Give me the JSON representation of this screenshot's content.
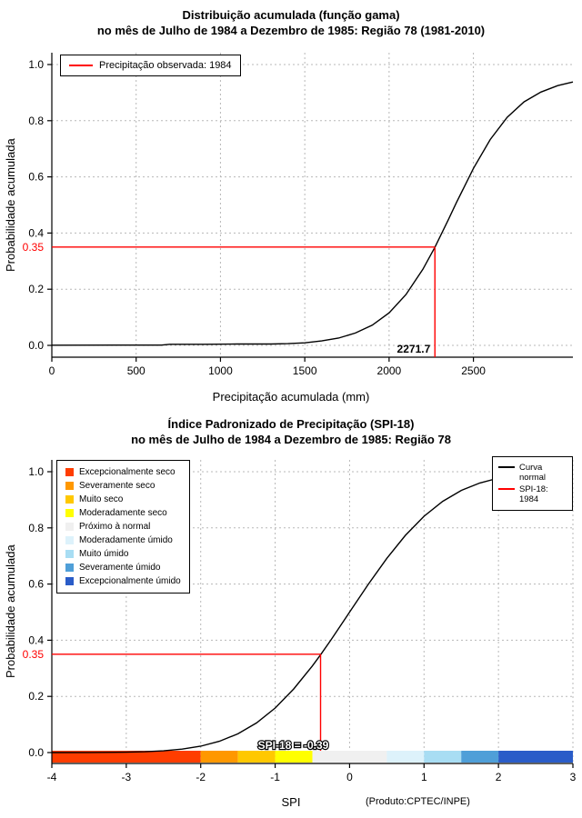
{
  "page": {
    "background": "#ffffff"
  },
  "style": {
    "grid_color": "#b8b8b8",
    "axis_color": "#000000",
    "curve_color": "#000000",
    "annotation_color": "#ff0000"
  },
  "chart_data": [
    {
      "type": "line",
      "title": "Distribuição acumulada (função gama)",
      "subtitle": "no mês de Julho de 1984 a Dezembro de 1985: Região 78 (1981-2010)",
      "xlabel": "Precipitação acumulada (mm)",
      "ylabel": "Probabilidade acumulada",
      "xlim": [
        0,
        3090
      ],
      "ylim": [
        0,
        1
      ],
      "xticks": [
        0,
        500,
        1000,
        1500,
        2000,
        2500
      ],
      "xtick_labels": [
        "0",
        "500",
        "1000",
        "1500",
        "2000",
        "2500"
      ],
      "yticks": [
        0,
        0.2,
        0.4,
        0.6,
        0.8,
        1
      ],
      "ytick_labels": [
        "0.0",
        "0.2",
        "0.4",
        "0.6",
        "0.8",
        "1.0"
      ],
      "grid": true,
      "legend_position": "top-left",
      "legend": [
        {
          "label": "Precipitação observada: 1984",
          "color": "#ff0000"
        }
      ],
      "series": [
        {
          "name": "Distribuição gama acumulada",
          "color": "#000000",
          "points": [
            [
              0,
              0.0005
            ],
            [
              400,
              0.001
            ],
            [
              650,
              0.001
            ],
            [
              700,
              0.004
            ],
            [
              900,
              0.004
            ],
            [
              1100,
              0.005
            ],
            [
              1300,
              0.005
            ],
            [
              1400,
              0.006
            ],
            [
              1500,
              0.009
            ],
            [
              1600,
              0.016
            ],
            [
              1700,
              0.026
            ],
            [
              1800,
              0.044
            ],
            [
              1900,
              0.072
            ],
            [
              2000,
              0.116
            ],
            [
              2100,
              0.181
            ],
            [
              2200,
              0.271
            ],
            [
              2271.7,
              0.35
            ],
            [
              2350,
              0.446
            ],
            [
              2400,
              0.509
            ],
            [
              2500,
              0.63
            ],
            [
              2600,
              0.733
            ],
            [
              2700,
              0.812
            ],
            [
              2800,
              0.867
            ],
            [
              2900,
              0.902
            ],
            [
              3000,
              0.925
            ],
            [
              3090,
              0.938
            ]
          ]
        }
      ],
      "annotation": {
        "x": 2271.7,
        "y": 0.35,
        "x_label": "2271.7",
        "y_label": "0.35",
        "color": "#ff0000"
      }
    },
    {
      "type": "line",
      "title": "Índice Padronizado de Precipitação (SPI-18)",
      "subtitle": "no mês de Julho de 1984 a Dezembro de 1985: Região 78",
      "xlabel": "SPI",
      "ylabel": "Probabilidade acumulada",
      "footnote": "(Produto:CPTEC/INPE)",
      "xlim": [
        -4,
        3
      ],
      "ylim": [
        0,
        1
      ],
      "xticks": [
        -4,
        -3,
        -2,
        -1,
        0,
        1,
        2,
        3
      ],
      "xtick_labels": [
        "-4",
        "-3",
        "-2",
        "-1",
        "0",
        "1",
        "2",
        "3"
      ],
      "yticks": [
        0,
        0.2,
        0.4,
        0.6,
        0.8,
        1
      ],
      "ytick_labels": [
        "0.0",
        "0.2",
        "0.4",
        "0.6",
        "0.8",
        "1.0"
      ],
      "grid": true,
      "legend_position": "top-right",
      "legend": [
        {
          "label": "Curva normal",
          "color": "#000000"
        },
        {
          "label": "SPI-18: 1984",
          "color": "#ff0000"
        }
      ],
      "classes": [
        {
          "label": "Excepcionalmente seco",
          "color": "#ff3d00",
          "from": -4,
          "to": -2
        },
        {
          "label": "Severamente seco",
          "color": "#ff9800",
          "from": -2,
          "to": -1.5
        },
        {
          "label": "Muito seco",
          "color": "#ffc800",
          "from": -1.5,
          "to": -1
        },
        {
          "label": "Moderadamente seco",
          "color": "#ffff00",
          "from": -1,
          "to": -0.5
        },
        {
          "label": "Próximo à normal",
          "color": "#f0f0f0",
          "from": -0.5,
          "to": 0.5
        },
        {
          "label": "Moderadamente úmido",
          "color": "#ddf2fb",
          "from": 0.5,
          "to": 1
        },
        {
          "label": "Muito úmido",
          "color": "#a8ddf3",
          "from": 1,
          "to": 1.5
        },
        {
          "label": "Severamente úmido",
          "color": "#4f9fd8",
          "from": 1.5,
          "to": 2
        },
        {
          "label": "Excepcionalmente úmido",
          "color": "#2a5cc8",
          "from": 2,
          "to": 3
        }
      ],
      "series": [
        {
          "name": "Curva normal",
          "color": "#000000",
          "points": [
            [
              -4,
              0.0
            ],
            [
              -3.5,
              0.0002
            ],
            [
              -3,
              0.0013
            ],
            [
              -2.75,
              0.003
            ],
            [
              -2.5,
              0.0062
            ],
            [
              -2.25,
              0.0122
            ],
            [
              -2,
              0.0228
            ],
            [
              -1.75,
              0.0401
            ],
            [
              -1.5,
              0.0668
            ],
            [
              -1.25,
              0.1056
            ],
            [
              -1,
              0.1587
            ],
            [
              -0.75,
              0.2266
            ],
            [
              -0.5,
              0.3085
            ],
            [
              -0.39,
              0.3483
            ],
            [
              -0.25,
              0.4013
            ],
            [
              0,
              0.5
            ],
            [
              0.25,
              0.5987
            ],
            [
              0.5,
              0.6915
            ],
            [
              0.75,
              0.7734
            ],
            [
              1,
              0.8413
            ],
            [
              1.25,
              0.8944
            ],
            [
              1.5,
              0.9332
            ],
            [
              1.75,
              0.9599
            ],
            [
              2,
              0.9772
            ],
            [
              2.25,
              0.9878
            ],
            [
              2.5,
              0.9938
            ],
            [
              2.75,
              0.997
            ],
            [
              3,
              0.9987
            ]
          ]
        }
      ],
      "annotation": {
        "x": -0.39,
        "y": 0.35,
        "y_label": "0.35",
        "bar_label": "SPI-18 = -0.39",
        "color": "#ff0000"
      }
    }
  ]
}
